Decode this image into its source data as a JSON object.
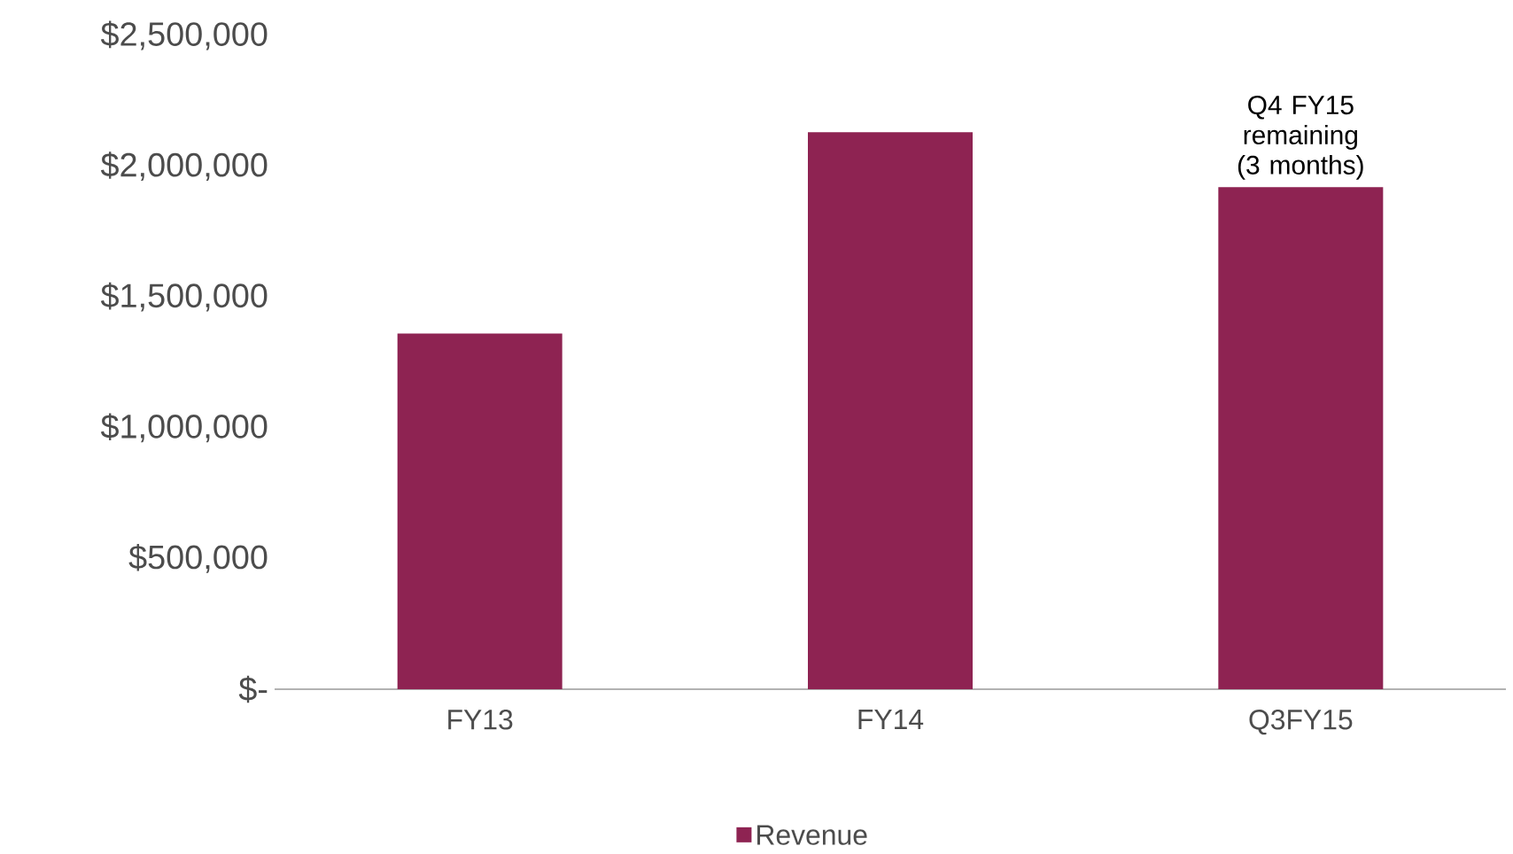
{
  "chart_data": {
    "type": "bar",
    "categories": [
      "FY13",
      "FY14",
      "Q3FY15"
    ],
    "series": [
      {
        "name": "Revenue",
        "color": "#8e2352",
        "values": [
          1360000,
          2130000,
          1920000
        ]
      }
    ],
    "ylim": [
      0,
      2500000
    ],
    "yticks": [
      {
        "value": 0,
        "label": "$-"
      },
      {
        "value": 500000,
        "label": "$500,000"
      },
      {
        "value": 1000000,
        "label": "$1,000,000"
      },
      {
        "value": 1500000,
        "label": "$1,500,000"
      },
      {
        "value": 2000000,
        "label": "$2,000,000"
      },
      {
        "value": 2500000,
        "label": "$2,500,000"
      }
    ],
    "annotations": [
      {
        "text": "Q4 FY15 remaining (3 months)",
        "x": "Q3FY15",
        "y": 1920000
      }
    ],
    "legend": "bottom"
  }
}
